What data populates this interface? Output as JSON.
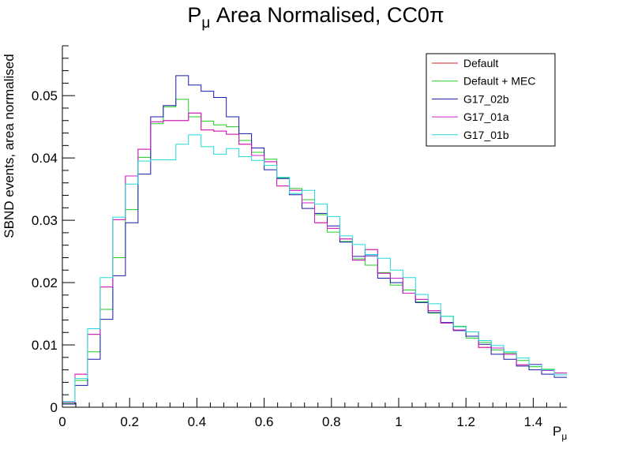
{
  "chart_data": {
    "type": "line",
    "title_main": "P",
    "title_sub": "μ",
    "title_rest": " Area Normalised, CC0π",
    "xlabel_main": "P",
    "xlabel_sub": "μ",
    "ylabel": "SBND events, area normalised",
    "xlim": [
      0,
      1.5
    ],
    "ylim": [
      0,
      0.058
    ],
    "xticks": [
      "0",
      "0.2",
      "0.4",
      "0.6",
      "0.8",
      "1",
      "1.2",
      "1.4"
    ],
    "yticks": [
      "0",
      "0.01",
      "0.02",
      "0.03",
      "0.04",
      "0.05"
    ],
    "bin_width": 0.0375,
    "x_bin_lower_edges": [
      0,
      0.0375,
      0.075,
      0.1125,
      0.15,
      0.1875,
      0.225,
      0.2625,
      0.3,
      0.3375,
      0.375,
      0.4125,
      0.45,
      0.4875,
      0.525,
      0.5625,
      0.6,
      0.6375,
      0.675,
      0.7125,
      0.75,
      0.7875,
      0.825,
      0.8625,
      0.9,
      0.9375,
      0.975,
      1.0125,
      1.05,
      1.0875,
      1.125,
      1.1625,
      1.2,
      1.2375,
      1.275,
      1.3125,
      1.35,
      1.3875,
      1.425,
      1.4625
    ],
    "legend_position": "top-right",
    "series": [
      {
        "name": "Default",
        "color": "#d62728",
        "values": [
          0.0008,
          0.0053,
          0.0117,
          0.0193,
          0.0301,
          0.0371,
          0.0414,
          0.0458,
          0.046,
          0.046,
          0.0472,
          0.0445,
          0.0443,
          0.0438,
          0.0422,
          0.0404,
          0.0394,
          0.0355,
          0.0348,
          0.0328,
          0.0296,
          0.0287,
          0.027,
          0.0236,
          0.0253,
          0.0215,
          0.0207,
          0.0183,
          0.0173,
          0.0155,
          0.0135,
          0.0124,
          0.0121,
          0.0096,
          0.0095,
          0.0085,
          0.0068,
          0.0069,
          0.0059,
          0.0055
        ]
      },
      {
        "name": "Default + MEC",
        "color": "#22cc22",
        "values": [
          0.0006,
          0.0043,
          0.0089,
          0.0157,
          0.024,
          0.0317,
          0.0401,
          0.0455,
          0.0482,
          0.0494,
          0.0466,
          0.0459,
          0.0453,
          0.045,
          0.0428,
          0.0409,
          0.0398,
          0.0368,
          0.0351,
          0.0333,
          0.0309,
          0.0281,
          0.0266,
          0.0238,
          0.0228,
          0.0216,
          0.0196,
          0.0188,
          0.0169,
          0.0151,
          0.0146,
          0.013,
          0.0111,
          0.0104,
          0.0092,
          0.0087,
          0.0075,
          0.0065,
          0.0061,
          0.0055
        ]
      },
      {
        "name": "G17_02b",
        "color": "#1a1aa6",
        "values": [
          0.0005,
          0.0035,
          0.0077,
          0.0141,
          0.0211,
          0.0296,
          0.0374,
          0.0466,
          0.0484,
          0.0532,
          0.0517,
          0.0507,
          0.0497,
          0.0466,
          0.0439,
          0.0416,
          0.0381,
          0.0367,
          0.0341,
          0.0319,
          0.0311,
          0.0291,
          0.0265,
          0.0242,
          0.0243,
          0.0207,
          0.02,
          0.0183,
          0.0168,
          0.0152,
          0.0136,
          0.0123,
          0.0114,
          0.0101,
          0.0085,
          0.0077,
          0.0066,
          0.006,
          0.0053,
          0.0048
        ]
      },
      {
        "name": "G17_01a",
        "color": "#cc22cc",
        "values": [
          0.0008,
          0.0053,
          0.0117,
          0.0193,
          0.0301,
          0.0371,
          0.0414,
          0.0458,
          0.046,
          0.046,
          0.0472,
          0.0445,
          0.0443,
          0.0438,
          0.0422,
          0.0404,
          0.0394,
          0.0355,
          0.0348,
          0.0328,
          0.0296,
          0.0287,
          0.027,
          0.0236,
          0.0253,
          0.0215,
          0.0207,
          0.0183,
          0.0173,
          0.0155,
          0.0135,
          0.0124,
          0.0121,
          0.0096,
          0.0095,
          0.0085,
          0.0068,
          0.0069,
          0.0059,
          0.0055
        ]
      },
      {
        "name": "G17_01b",
        "color": "#22d8d8",
        "values": [
          0.0009,
          0.0046,
          0.0126,
          0.0208,
          0.0305,
          0.0358,
          0.0395,
          0.0397,
          0.0397,
          0.0422,
          0.0437,
          0.0418,
          0.0406,
          0.0415,
          0.0402,
          0.0396,
          0.0388,
          0.0369,
          0.0343,
          0.0348,
          0.0326,
          0.0306,
          0.0275,
          0.0261,
          0.0245,
          0.0239,
          0.022,
          0.0208,
          0.0181,
          0.0166,
          0.0146,
          0.0129,
          0.0121,
          0.0107,
          0.0099,
          0.0089,
          0.0079,
          0.0068,
          0.006,
          0.0052
        ]
      }
    ]
  }
}
